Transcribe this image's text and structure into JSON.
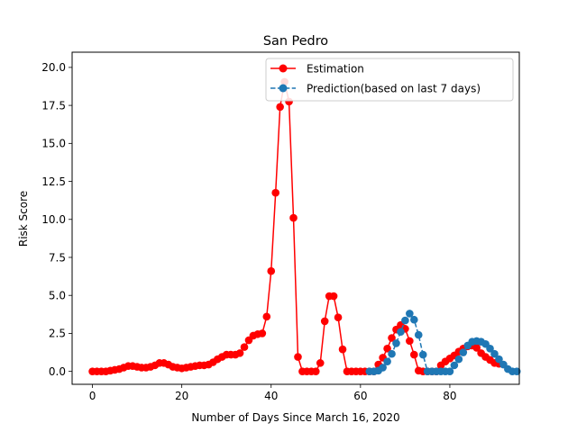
{
  "chart_data": {
    "type": "line",
    "title": "San Pedro",
    "xlabel": "Number of Days Since March 16, 2020",
    "ylabel": "Risk Score",
    "xlim": [
      -4.55,
      95.55
    ],
    "ylim": [
      -0.85,
      21.0
    ],
    "x_ticks": [
      0,
      20,
      40,
      60,
      80
    ],
    "y_ticks": [
      0.0,
      2.5,
      5.0,
      7.5,
      10.0,
      12.5,
      15.0,
      17.5,
      20.0
    ],
    "y_tick_labels": [
      "0.0",
      "2.5",
      "5.0",
      "7.5",
      "10.0",
      "12.5",
      "15.0",
      "17.5",
      "20.0"
    ],
    "grid": false,
    "legend": {
      "placement": "top-right"
    },
    "series": [
      {
        "name": "Estimation",
        "color": "#ff0000",
        "line_style": "solid",
        "marker": "circle",
        "x_start": 0,
        "values": [
          0.0,
          0.0,
          0.0,
          0.0,
          0.05,
          0.1,
          0.15,
          0.25,
          0.35,
          0.35,
          0.3,
          0.25,
          0.25,
          0.3,
          0.4,
          0.55,
          0.55,
          0.45,
          0.3,
          0.25,
          0.2,
          0.25,
          0.3,
          0.35,
          0.4,
          0.4,
          0.45,
          0.6,
          0.8,
          0.95,
          1.1,
          1.1,
          1.1,
          1.2,
          1.6,
          2.05,
          2.35,
          2.45,
          2.5,
          3.6,
          6.6,
          11.75,
          17.4,
          19.05,
          17.75,
          10.1,
          0.95,
          0.0,
          0.0,
          0.0,
          0.0,
          0.55,
          3.3,
          4.95,
          4.95,
          3.55,
          1.45,
          0.0,
          0.0,
          0.0,
          0.0,
          0.0,
          0.0,
          0.0,
          0.45,
          0.9,
          1.5,
          2.2,
          2.75,
          3.05,
          2.8,
          2.0,
          1.1,
          0.05,
          0.0,
          0.0,
          0.0,
          0.0,
          0.4,
          0.65,
          0.85,
          1.05,
          1.3,
          1.5,
          1.65,
          1.7,
          1.55,
          1.2,
          0.95,
          0.75,
          0.55,
          0.5
        ]
      },
      {
        "name": "Prediction(based on last 7 days)",
        "color": "#1f77b4",
        "line_style": "dashed",
        "marker": "circle",
        "x_start": 62,
        "values": [
          0.0,
          0.0,
          0.05,
          0.25,
          0.65,
          1.15,
          1.85,
          2.6,
          3.35,
          3.8,
          3.4,
          2.4,
          1.1,
          0.0,
          0.0,
          0.0,
          0.0,
          0.0,
          0.0,
          0.4,
          0.8,
          1.25,
          1.7,
          1.95,
          2.0,
          1.95,
          1.8,
          1.5,
          1.15,
          0.8,
          0.45,
          0.15,
          0.0,
          0.0
        ]
      }
    ]
  }
}
